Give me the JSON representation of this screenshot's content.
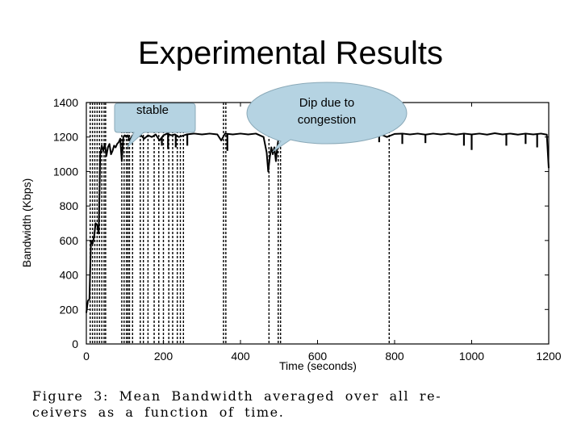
{
  "slide": {
    "title": "Experimental Results",
    "caption_line1": "Figure 3:  Mean Bandwidth averaged over all re-",
    "caption_line2": "ceivers as a function of time."
  },
  "annotations": {
    "stable": "stable",
    "dip_line1": "Dip due to",
    "dip_line2": "congestion"
  },
  "colors": {
    "callout_fill": "#b5d3e2",
    "callout_stroke": "#8aa9b8",
    "line": "#000000"
  },
  "chart_data": {
    "type": "line",
    "xlabel": "Time (seconds)",
    "ylabel": "Bandwidth (Kbps)",
    "xlim": [
      0,
      1200
    ],
    "ylim": [
      0,
      1400
    ],
    "xticks": [
      0,
      200,
      400,
      600,
      800,
      1000,
      1200
    ],
    "yticks": [
      0,
      200,
      400,
      600,
      800,
      1000,
      1200,
      1400
    ],
    "vlines": [
      10,
      16,
      22,
      28,
      34,
      40,
      46,
      50,
      92,
      98,
      104,
      108,
      112,
      120,
      140,
      148,
      160,
      176,
      188,
      200,
      214,
      224,
      236,
      244,
      252,
      356,
      362,
      474,
      498,
      504,
      786
    ],
    "series": [
      {
        "x": [
          0,
          4,
          8,
          12,
          16,
          20,
          24,
          28,
          32,
          36,
          40,
          44,
          48,
          52,
          56,
          60,
          64,
          68,
          72,
          76,
          80,
          84,
          88,
          92,
          96,
          100,
          104,
          108,
          112,
          116,
          120,
          130,
          140,
          150,
          160,
          170,
          180,
          190,
          200,
          210,
          220,
          230,
          240,
          260,
          280,
          300,
          320,
          340,
          350,
          360,
          380,
          400,
          420,
          440,
          450,
          460,
          468,
          472,
          476,
          480,
          484,
          488,
          492,
          496,
          500,
          504,
          510,
          520,
          540,
          560,
          580,
          600,
          620,
          640,
          660,
          680,
          700,
          720,
          740,
          760,
          780,
          800,
          820,
          840,
          860,
          880,
          900,
          920,
          940,
          960,
          980,
          1000,
          1020,
          1040,
          1060,
          1080,
          1100,
          1120,
          1140,
          1160,
          1180,
          1195,
          1200
        ],
        "y": [
          180,
          250,
          260,
          600,
          580,
          620,
          700,
          690,
          640,
          1100,
          1150,
          1120,
          1160,
          1090,
          1140,
          1160,
          1100,
          1120,
          1150,
          1140,
          1160,
          1170,
          1190,
          1060,
          1200,
          1210,
          1200,
          1210,
          1180,
          1195,
          1210,
          1200,
          1215,
          1190,
          1210,
          1200,
          1215,
          1180,
          1210,
          1220,
          1210,
          1215,
          1200,
          1215,
          1220,
          1215,
          1220,
          1215,
          1180,
          1220,
          1215,
          1220,
          1215,
          1220,
          1210,
          1200,
          1110,
          1000,
          1080,
          1140,
          1100,
          1140,
          1060,
          1150,
          1210,
          1220,
          1215,
          1220,
          1215,
          1220,
          1215,
          1222,
          1215,
          1220,
          1214,
          1220,
          1215,
          1220,
          1214,
          1220,
          1200,
          1218,
          1220,
          1215,
          1220,
          1214,
          1220,
          1215,
          1220,
          1214,
          1220,
          1215,
          1220,
          1214,
          1222,
          1215,
          1220,
          1214,
          1220,
          1215,
          1220,
          1214,
          1020
        ]
      }
    ],
    "spikes": [
      {
        "x": 196,
        "y": 1150
      },
      {
        "x": 212,
        "y": 1130
      },
      {
        "x": 232,
        "y": 1140
      },
      {
        "x": 262,
        "y": 1150
      },
      {
        "x": 366,
        "y": 1120
      },
      {
        "x": 610,
        "y": 1165
      },
      {
        "x": 660,
        "y": 1170
      },
      {
        "x": 760,
        "y": 1170
      },
      {
        "x": 820,
        "y": 1160
      },
      {
        "x": 880,
        "y": 1165
      },
      {
        "x": 980,
        "y": 1150
      },
      {
        "x": 1000,
        "y": 1125
      },
      {
        "x": 1090,
        "y": 1150
      },
      {
        "x": 1140,
        "y": 1160
      },
      {
        "x": 1170,
        "y": 1140
      }
    ]
  }
}
